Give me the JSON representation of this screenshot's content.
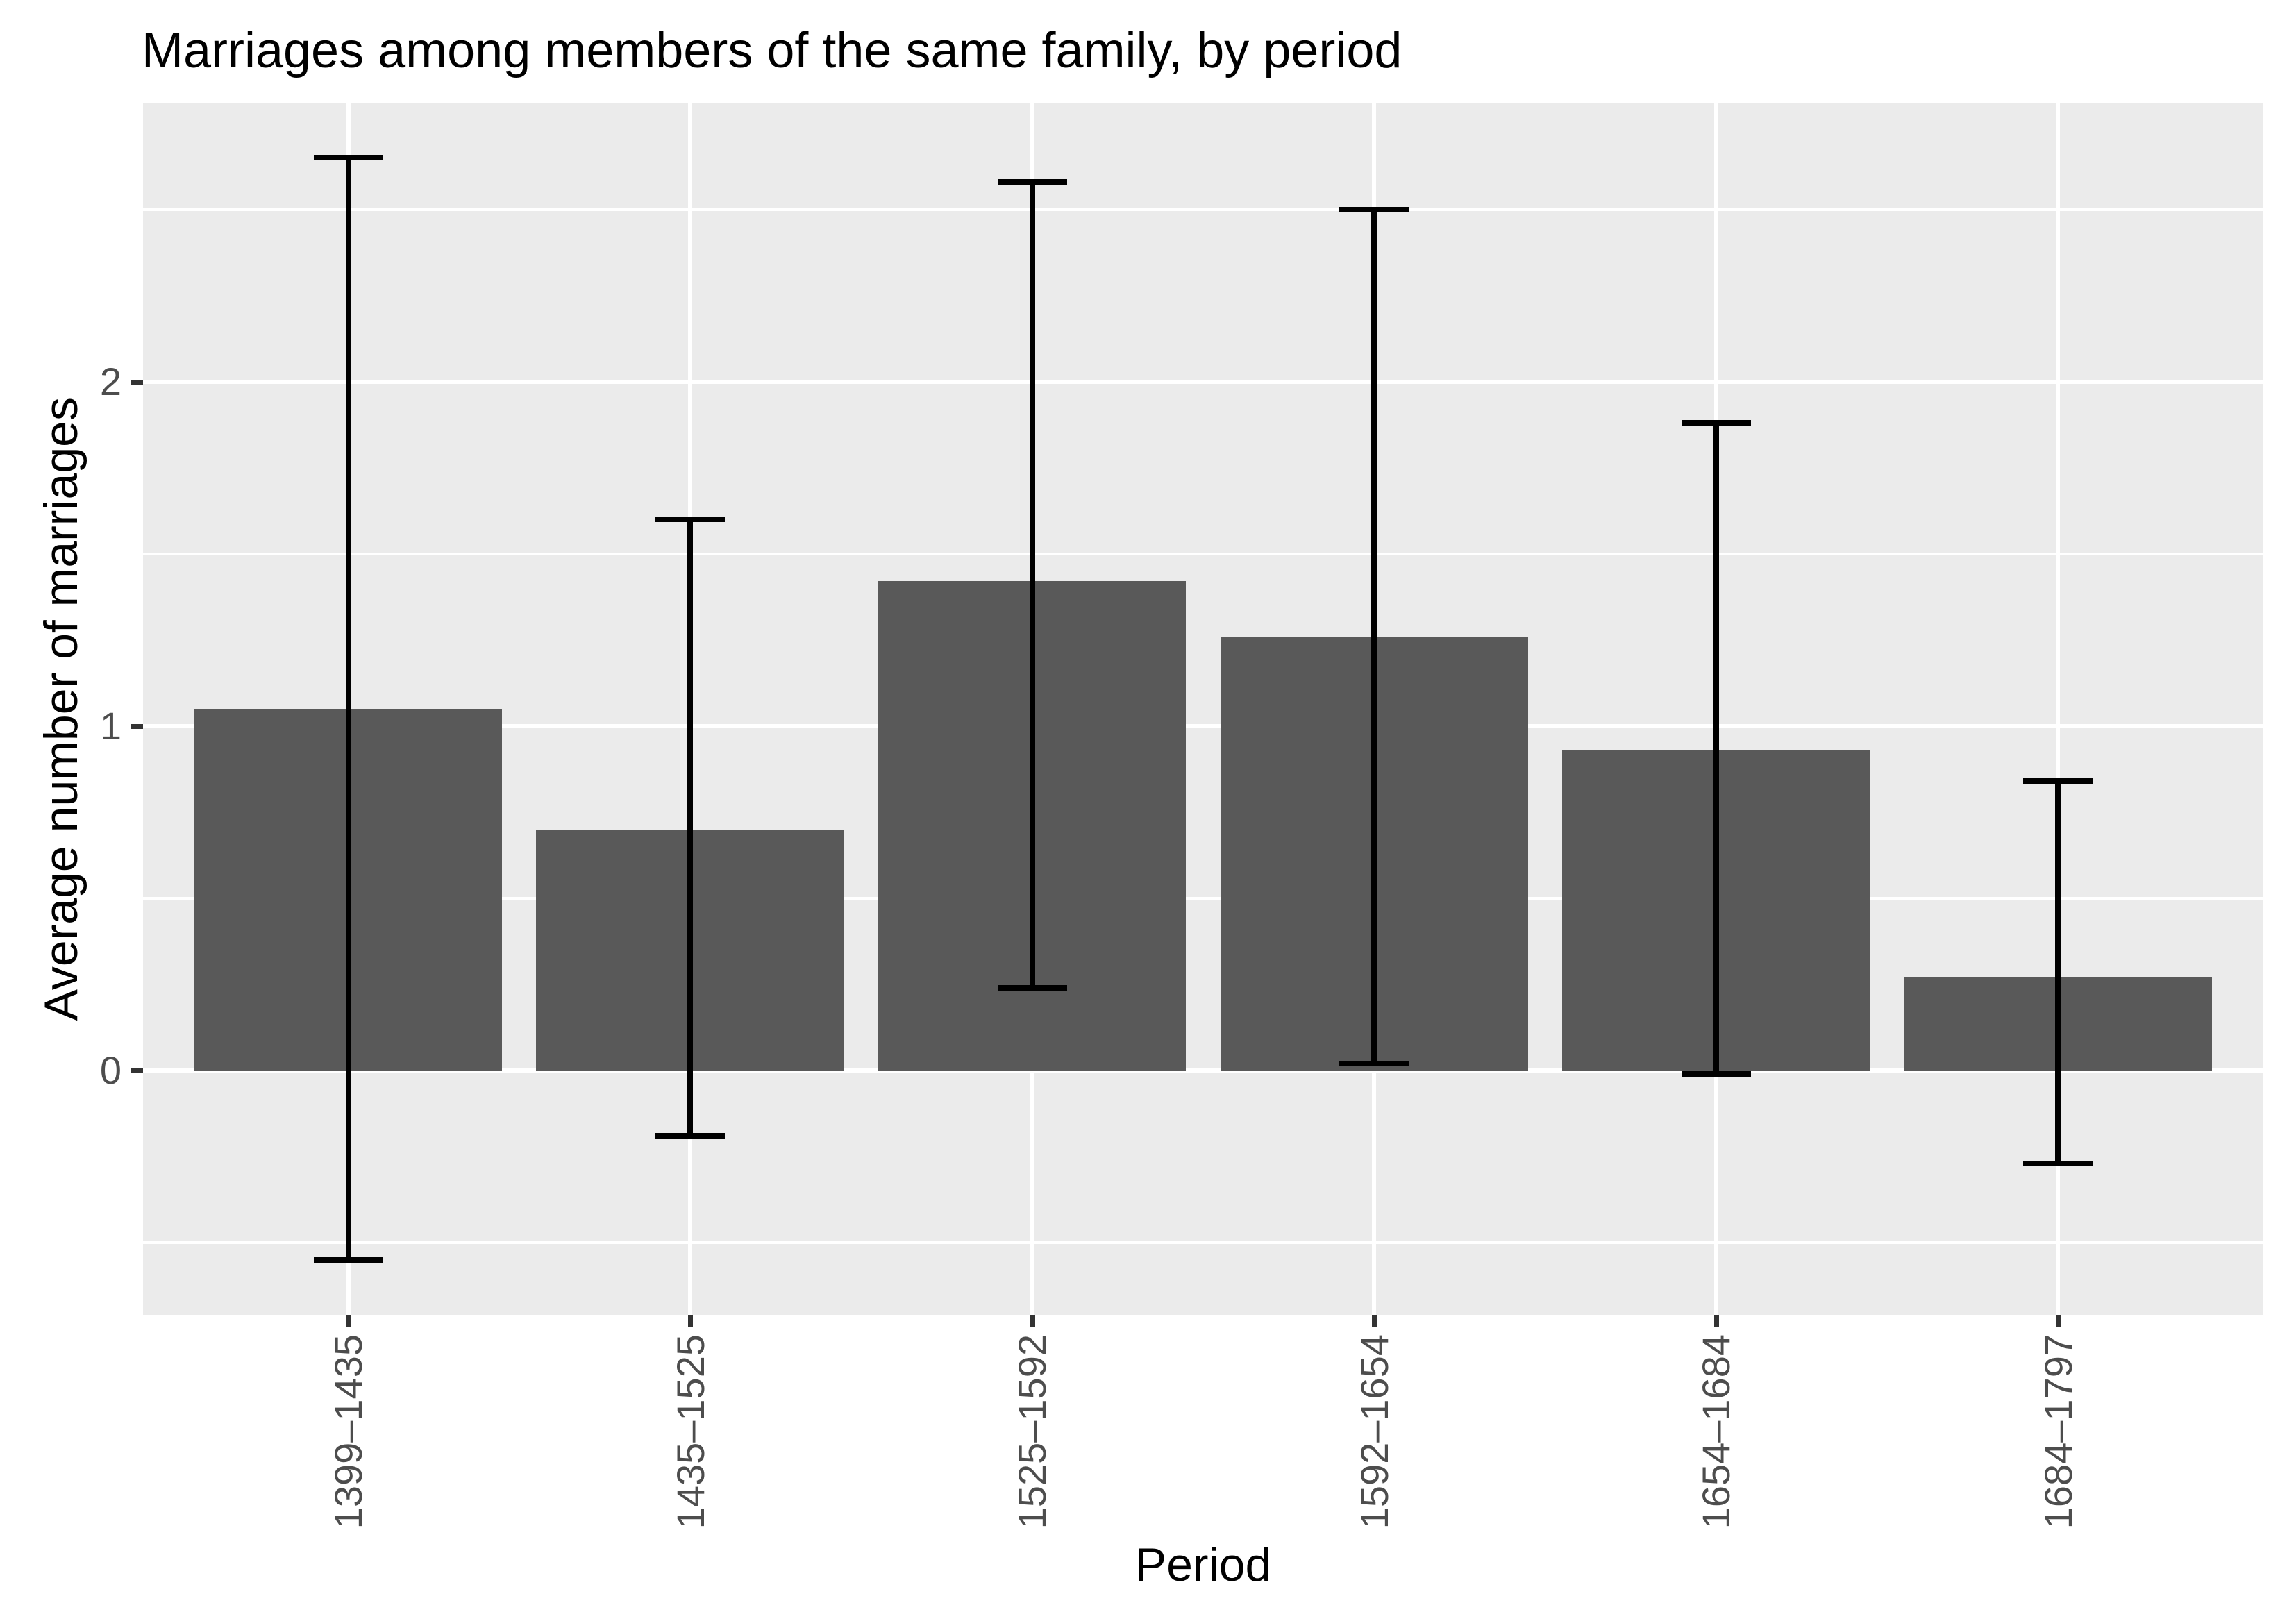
{
  "chart_data": {
    "type": "bar",
    "title": "Marriages among members of the same family, by period",
    "xlabel": "Period",
    "ylabel": "Average number of marriages",
    "categories": [
      "1399–1435",
      "1435–1525",
      "1525–1592",
      "1592–1654",
      "1654–1684",
      "1684–1797"
    ],
    "values": [
      1.05,
      0.7,
      1.42,
      1.26,
      0.93,
      0.27
    ],
    "error_low": [
      -0.55,
      -0.19,
      0.24,
      0.02,
      -0.01,
      -0.27
    ],
    "error_high": [
      2.65,
      1.6,
      2.58,
      2.5,
      1.88,
      0.84
    ],
    "yticks": [
      0,
      1,
      2
    ],
    "ytick_labels": [
      "0",
      "1",
      "2"
    ],
    "minor_gridlines": [
      -0.5,
      0.5,
      1.5,
      2.5
    ],
    "ylim": [
      -0.71,
      2.81
    ],
    "grid": true,
    "legend": false,
    "colors": {
      "bar": "#595959",
      "panel_bg": "#EBEBEB",
      "grid": "#FFFFFF",
      "tick_label": "#4D4D4D",
      "tick_mark": "#333333",
      "error_bar": "#000000",
      "title": "#000000",
      "axis_title": "#000000",
      "page_bg": "#FFFFFF"
    }
  }
}
